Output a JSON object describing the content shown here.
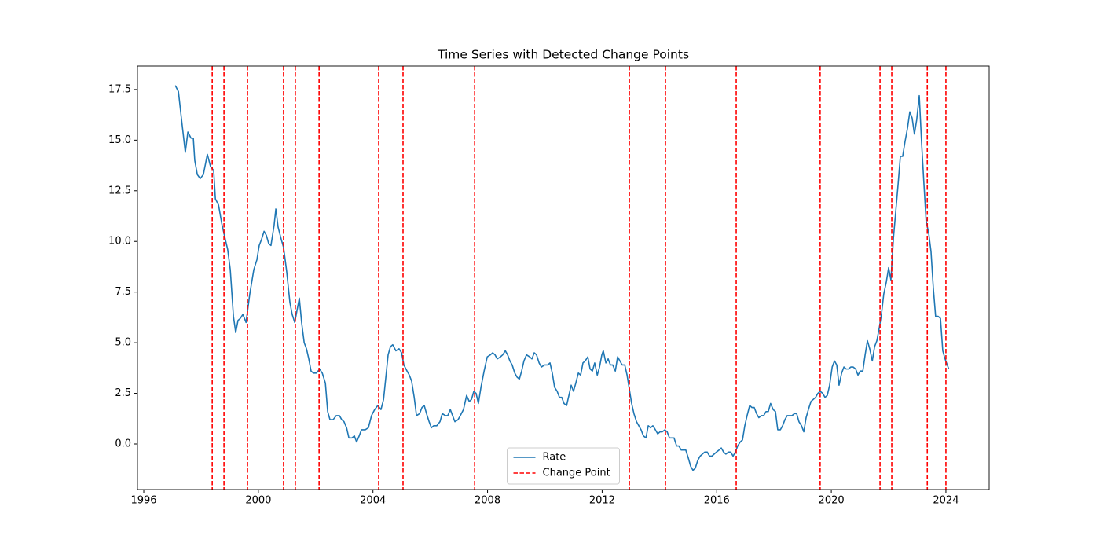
{
  "chart_data": {
    "type": "line",
    "title": "Time Series with Detected Change Points",
    "x": [
      1997.1,
      1997.21,
      1997.32,
      1997.45,
      1997.54,
      1997.65,
      1997.73,
      1997.78,
      1997.87,
      1997.97,
      1998.08,
      1998.22,
      1998.33,
      1998.44,
      1998.5,
      1998.61,
      1998.72,
      1998.83,
      1998.93,
      1999.02,
      1999.13,
      1999.21,
      1999.29,
      1999.37,
      1999.46,
      1999.57,
      1999.7,
      1999.84,
      1999.95,
      2000.03,
      2000.11,
      2000.2,
      2000.28,
      2000.36,
      2000.44,
      2000.55,
      2000.61,
      2000.69,
      2000.8,
      2000.88,
      2000.99,
      2001.1,
      2001.18,
      2001.27,
      2001.35,
      2001.43,
      2001.51,
      2001.6,
      2001.68,
      2001.76,
      2001.84,
      2001.92,
      2002.03,
      2002.14,
      2002.23,
      2002.34,
      2002.42,
      2002.5,
      2002.61,
      2002.72,
      2002.83,
      2002.91,
      2002.99,
      2003.08,
      2003.16,
      2003.27,
      2003.35,
      2003.43,
      2003.52,
      2003.6,
      2003.73,
      2003.84,
      2003.95,
      2004.06,
      2004.17,
      2004.28,
      2004.37,
      2004.45,
      2004.53,
      2004.61,
      2004.69,
      2004.8,
      2004.91,
      2005.0,
      2005.08,
      2005.19,
      2005.27,
      2005.35,
      2005.44,
      2005.52,
      2005.63,
      2005.71,
      2005.79,
      2005.87,
      2005.96,
      2006.04,
      2006.12,
      2006.23,
      2006.34,
      2006.42,
      2006.53,
      2006.61,
      2006.7,
      2006.78,
      2006.86,
      2006.97,
      2007.05,
      2007.16,
      2007.27,
      2007.36,
      2007.44,
      2007.52,
      2007.6,
      2007.68,
      2007.77,
      2007.88,
      2007.99,
      2008.1,
      2008.18,
      2008.26,
      2008.34,
      2008.45,
      2008.53,
      2008.62,
      2008.7,
      2008.78,
      2008.86,
      2008.95,
      2009.03,
      2009.11,
      2009.19,
      2009.27,
      2009.36,
      2009.47,
      2009.55,
      2009.63,
      2009.71,
      2009.8,
      2009.88,
      2009.99,
      2010.1,
      2010.18,
      2010.26,
      2010.34,
      2010.43,
      2010.51,
      2010.59,
      2010.67,
      2010.76,
      2010.84,
      2010.92,
      2011.0,
      2011.08,
      2011.17,
      2011.25,
      2011.33,
      2011.41,
      2011.5,
      2011.58,
      2011.66,
      2011.74,
      2011.83,
      2011.91,
      2011.99,
      2012.04,
      2012.13,
      2012.21,
      2012.29,
      2012.37,
      2012.46,
      2012.54,
      2012.62,
      2012.7,
      2012.79,
      2012.87,
      2012.95,
      2013.03,
      2013.11,
      2013.2,
      2013.28,
      2013.36,
      2013.44,
      2013.53,
      2013.61,
      2013.69,
      2013.77,
      2013.86,
      2013.94,
      2014.02,
      2014.1,
      2014.19,
      2014.27,
      2014.35,
      2014.43,
      2014.51,
      2014.6,
      2014.68,
      2014.76,
      2014.84,
      2014.92,
      2015.01,
      2015.09,
      2015.17,
      2015.25,
      2015.34,
      2015.42,
      2015.5,
      2015.58,
      2015.67,
      2015.75,
      2015.83,
      2015.91,
      2015.99,
      2016.08,
      2016.16,
      2016.24,
      2016.32,
      2016.41,
      2016.49,
      2016.57,
      2016.65,
      2016.73,
      2016.82,
      2016.9,
      2016.98,
      2017.06,
      2017.15,
      2017.23,
      2017.31,
      2017.39,
      2017.47,
      2017.56,
      2017.64,
      2017.72,
      2017.8,
      2017.88,
      2017.97,
      2018.05,
      2018.13,
      2018.22,
      2018.3,
      2018.38,
      2018.46,
      2018.54,
      2018.63,
      2018.71,
      2018.79,
      2018.87,
      2018.96,
      2019.04,
      2019.12,
      2019.2,
      2019.29,
      2019.37,
      2019.45,
      2019.53,
      2019.61,
      2019.7,
      2019.78,
      2019.86,
      2019.94,
      2020.03,
      2020.11,
      2020.19,
      2020.27,
      2020.36,
      2020.44,
      2020.52,
      2020.6,
      2020.68,
      2020.76,
      2020.85,
      2020.93,
      2021.01,
      2021.1,
      2021.18,
      2021.26,
      2021.34,
      2021.43,
      2021.51,
      2021.59,
      2021.67,
      2021.75,
      2021.83,
      2021.92,
      2022.0,
      2022.08,
      2022.17,
      2022.25,
      2022.33,
      2022.41,
      2022.49,
      2022.57,
      2022.66,
      2022.74,
      2022.82,
      2022.9,
      2022.98,
      2023.07,
      2023.15,
      2023.23,
      2023.31,
      2023.4,
      2023.48,
      2023.56,
      2023.64,
      2023.73,
      2023.81,
      2023.89,
      2023.97,
      2024.1
    ],
    "series": [
      {
        "name": "Rate",
        "color": "#1f77b4",
        "values": [
          17.7,
          17.4,
          16.0,
          14.4,
          15.4,
          15.1,
          15.1,
          14.0,
          13.3,
          13.1,
          13.3,
          14.3,
          13.7,
          13.5,
          12.1,
          11.8,
          10.9,
          10.2,
          9.6,
          8.6,
          6.3,
          5.5,
          6.1,
          6.2,
          6.4,
          6.0,
          7.4,
          8.6,
          9.1,
          9.8,
          10.1,
          10.5,
          10.3,
          9.9,
          9.8,
          10.8,
          11.6,
          10.7,
          10.1,
          9.7,
          8.5,
          7.0,
          6.4,
          6.0,
          6.6,
          7.2,
          6.0,
          5.0,
          4.7,
          4.2,
          3.6,
          3.5,
          3.5,
          3.7,
          3.5,
          3.0,
          1.6,
          1.2,
          1.2,
          1.4,
          1.4,
          1.2,
          1.1,
          0.8,
          0.3,
          0.3,
          0.4,
          0.1,
          0.4,
          0.7,
          0.7,
          0.8,
          1.4,
          1.7,
          1.9,
          1.7,
          2.2,
          3.3,
          4.4,
          4.8,
          4.9,
          4.6,
          4.7,
          4.5,
          3.9,
          3.6,
          3.4,
          3.1,
          2.3,
          1.4,
          1.5,
          1.8,
          1.9,
          1.5,
          1.1,
          0.8,
          0.9,
          0.9,
          1.1,
          1.5,
          1.4,
          1.4,
          1.7,
          1.4,
          1.1,
          1.2,
          1.4,
          1.7,
          2.4,
          2.1,
          2.2,
          2.6,
          2.5,
          2.0,
          2.8,
          3.6,
          4.3,
          4.4,
          4.5,
          4.4,
          4.2,
          4.3,
          4.4,
          4.6,
          4.4,
          4.1,
          3.9,
          3.5,
          3.3,
          3.2,
          3.6,
          4.1,
          4.4,
          4.3,
          4.2,
          4.5,
          4.4,
          4.0,
          3.8,
          3.9,
          3.9,
          4.0,
          3.5,
          2.8,
          2.6,
          2.3,
          2.3,
          2.0,
          1.9,
          2.4,
          2.9,
          2.6,
          3.0,
          3.5,
          3.4,
          4.0,
          4.1,
          4.3,
          3.7,
          3.6,
          4.0,
          3.4,
          3.8,
          4.4,
          4.6,
          4.0,
          4.2,
          3.9,
          3.9,
          3.6,
          4.3,
          4.1,
          3.9,
          3.9,
          3.4,
          2.7,
          2.0,
          1.5,
          1.1,
          0.9,
          0.7,
          0.4,
          0.3,
          0.9,
          0.8,
          0.9,
          0.7,
          0.5,
          0.6,
          0.6,
          0.7,
          0.6,
          0.3,
          0.3,
          0.3,
          -0.1,
          -0.1,
          -0.3,
          -0.3,
          -0.3,
          -0.7,
          -1.1,
          -1.3,
          -1.2,
          -0.8,
          -0.6,
          -0.5,
          -0.4,
          -0.4,
          -0.6,
          -0.6,
          -0.5,
          -0.4,
          -0.3,
          -0.2,
          -0.4,
          -0.5,
          -0.4,
          -0.4,
          -0.6,
          -0.4,
          -0.1,
          0.1,
          0.2,
          0.9,
          1.4,
          1.9,
          1.8,
          1.8,
          1.5,
          1.3,
          1.4,
          1.4,
          1.6,
          1.6,
          2.0,
          1.7,
          1.6,
          0.7,
          0.7,
          0.9,
          1.2,
          1.4,
          1.4,
          1.4,
          1.5,
          1.5,
          1.1,
          0.9,
          0.6,
          1.3,
          1.7,
          2.1,
          2.2,
          2.3,
          2.5,
          2.6,
          2.5,
          2.3,
          2.4,
          2.9,
          3.8,
          4.1,
          3.9,
          2.9,
          3.5,
          3.8,
          3.7,
          3.7,
          3.8,
          3.8,
          3.7,
          3.4,
          3.6,
          3.6,
          4.4,
          5.1,
          4.7,
          4.1,
          4.8,
          5.1,
          5.7,
          6.4,
          7.4,
          8.0,
          8.7,
          8.1,
          10.2,
          11.5,
          12.8,
          14.2,
          14.2,
          14.9,
          15.6,
          16.4,
          16.1,
          15.3,
          16.0,
          17.2,
          14.9,
          12.9,
          11.0,
          10.4,
          9.5,
          7.7,
          6.3,
          6.3,
          6.2,
          4.6,
          4.2,
          3.7
        ]
      }
    ],
    "change_points": {
      "name": "Change Point",
      "color": "#ff0000",
      "dashed": true,
      "x": [
        1998.39,
        1998.8,
        1999.62,
        2000.88,
        2001.29,
        2002.12,
        2004.2,
        2005.05,
        2007.55,
        2012.95,
        2014.21,
        2016.68,
        2019.61,
        2021.7,
        2022.11,
        2023.35,
        2024.0
      ]
    },
    "xlim": [
      1995.78,
      2025.51
    ],
    "xticks": [
      1996,
      2000,
      2004,
      2008,
      2012,
      2016,
      2020,
      2024
    ],
    "ylim": [
      -2.25,
      18.66
    ],
    "yticks": [
      {
        "value": 0,
        "label": "0.0"
      },
      2.5,
      {
        "value": 5,
        "label": "5.0"
      },
      7.5,
      {
        "value": 10,
        "label": "10.0"
      },
      12.5,
      {
        "value": 15,
        "label": "15.0"
      },
      17.5
    ],
    "grid": false,
    "legend": "lower center"
  }
}
